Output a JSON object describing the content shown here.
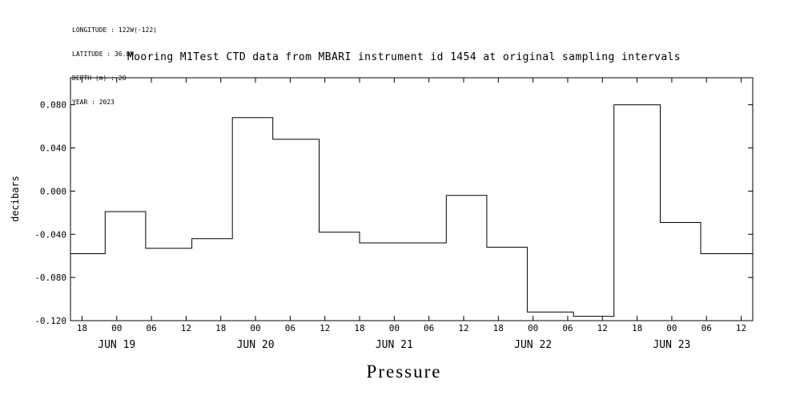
{
  "meta_block": {
    "lines": [
      "LONGITUDE : 122W(-122)",
      "LATITUDE : 36.8N",
      "DEPTH (m) : 20",
      "YEAR : 2023"
    ]
  },
  "chart_data": {
    "type": "line",
    "subtype": "step",
    "title": "Mooring M1Test CTD data from MBARI instrument id 1454 at original sampling intervals",
    "xlabel": "Pressure",
    "ylabel": "decibars",
    "background": "#ffffff",
    "line_color": "#000000",
    "grid": false,
    "legend": "none",
    "ylim": [
      -0.12,
      0.105
    ],
    "xlim_hours": [
      0,
      118
    ],
    "y_ticks": [
      {
        "v": 0.08,
        "label": "0.080"
      },
      {
        "v": 0.04,
        "label": "0.040"
      },
      {
        "v": 0.0,
        "label": "0.000"
      },
      {
        "v": -0.04,
        "label": "-0.040"
      },
      {
        "v": -0.08,
        "label": "-0.080"
      },
      {
        "v": -0.12,
        "label": "-0.120"
      }
    ],
    "x_ticks": [
      {
        "t": 2,
        "label": "18"
      },
      {
        "t": 8,
        "label": "00"
      },
      {
        "t": 14,
        "label": "06"
      },
      {
        "t": 20,
        "label": "12"
      },
      {
        "t": 26,
        "label": "18"
      },
      {
        "t": 32,
        "label": "00"
      },
      {
        "t": 38,
        "label": "06"
      },
      {
        "t": 44,
        "label": "12"
      },
      {
        "t": 50,
        "label": "18"
      },
      {
        "t": 56,
        "label": "00"
      },
      {
        "t": 62,
        "label": "06"
      },
      {
        "t": 68,
        "label": "12"
      },
      {
        "t": 74,
        "label": "18"
      },
      {
        "t": 80,
        "label": "00"
      },
      {
        "t": 86,
        "label": "06"
      },
      {
        "t": 92,
        "label": "12"
      },
      {
        "t": 98,
        "label": "18"
      },
      {
        "t": 104,
        "label": "00"
      },
      {
        "t": 110,
        "label": "06"
      },
      {
        "t": 116,
        "label": "12"
      }
    ],
    "x_date_labels": [
      {
        "t": 8,
        "label": "JUN 19"
      },
      {
        "t": 32,
        "label": "JUN 20"
      },
      {
        "t": 56,
        "label": "JUN 21"
      },
      {
        "t": 80,
        "label": "JUN 22"
      },
      {
        "t": 104,
        "label": "JUN 23"
      }
    ],
    "segments": [
      {
        "t0": 0,
        "t1": 6,
        "v": -0.058
      },
      {
        "t0": 6,
        "t1": 13,
        "v": -0.019
      },
      {
        "t0": 13,
        "t1": 21,
        "v": -0.053
      },
      {
        "t0": 21,
        "t1": 28,
        "v": -0.044
      },
      {
        "t0": 28,
        "t1": 35,
        "v": 0.068
      },
      {
        "t0": 35,
        "t1": 43,
        "v": 0.048
      },
      {
        "t0": 43,
        "t1": 50,
        "v": -0.038
      },
      {
        "t0": 50,
        "t1": 65,
        "v": -0.048
      },
      {
        "t0": 65,
        "t1": 72,
        "v": -0.004
      },
      {
        "t0": 72,
        "t1": 79,
        "v": -0.052
      },
      {
        "t0": 79,
        "t1": 87,
        "v": -0.112
      },
      {
        "t0": 87,
        "t1": 94,
        "v": -0.116
      },
      {
        "t0": 94,
        "t1": 102,
        "v": 0.08
      },
      {
        "t0": 102,
        "t1": 109,
        "v": -0.029
      },
      {
        "t0": 109,
        "t1": 118,
        "v": -0.058
      }
    ]
  }
}
